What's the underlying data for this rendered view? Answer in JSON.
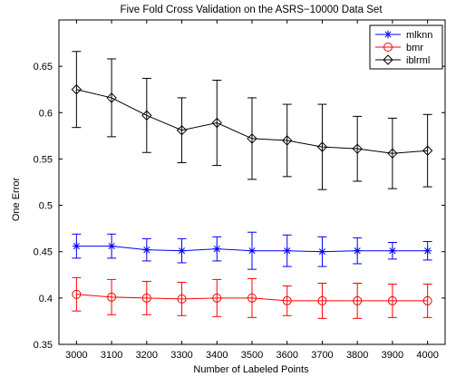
{
  "chart_data": {
    "type": "line",
    "title": "Five Fold Cross Validation on the ASRS−10000 Data Set",
    "xlabel": "Number of Labeled Points",
    "ylabel": "One Error",
    "xlim": [
      2950,
      4050
    ],
    "ylim": [
      0.35,
      0.7
    ],
    "x_ticks": [
      3000,
      3100,
      3200,
      3300,
      3400,
      3500,
      3600,
      3700,
      3800,
      3900,
      4000
    ],
    "y_ticks": [
      0.35,
      0.4,
      0.45,
      0.5,
      0.55,
      0.6,
      0.65
    ],
    "x": [
      3000,
      3100,
      3200,
      3300,
      3400,
      3500,
      3600,
      3700,
      3800,
      3900,
      4000
    ],
    "legend_position": "top-right",
    "grid": false,
    "series": [
      {
        "name": "mlknn",
        "color": "#0000ff",
        "marker": "star",
        "values": [
          0.456,
          0.456,
          0.452,
          0.451,
          0.453,
          0.451,
          0.451,
          0.45,
          0.451,
          0.451,
          0.451
        ],
        "error": [
          0.013,
          0.013,
          0.012,
          0.013,
          0.013,
          0.02,
          0.017,
          0.016,
          0.014,
          0.009,
          0.01
        ]
      },
      {
        "name": "bmr",
        "color": "#ff0000",
        "marker": "circle",
        "values": [
          0.404,
          0.401,
          0.4,
          0.399,
          0.4,
          0.4,
          0.397,
          0.397,
          0.397,
          0.397,
          0.397
        ],
        "error": [
          0.018,
          0.019,
          0.018,
          0.018,
          0.02,
          0.021,
          0.016,
          0.019,
          0.019,
          0.018,
          0.018
        ]
      },
      {
        "name": "iblrml",
        "color": "#000000",
        "marker": "diamond",
        "values": [
          0.625,
          0.616,
          0.597,
          0.581,
          0.589,
          0.572,
          0.57,
          0.563,
          0.561,
          0.556,
          0.559
        ],
        "error": [
          0.041,
          0.042,
          0.04,
          0.035,
          0.046,
          0.044,
          0.039,
          0.046,
          0.035,
          0.038,
          0.039
        ]
      }
    ]
  }
}
